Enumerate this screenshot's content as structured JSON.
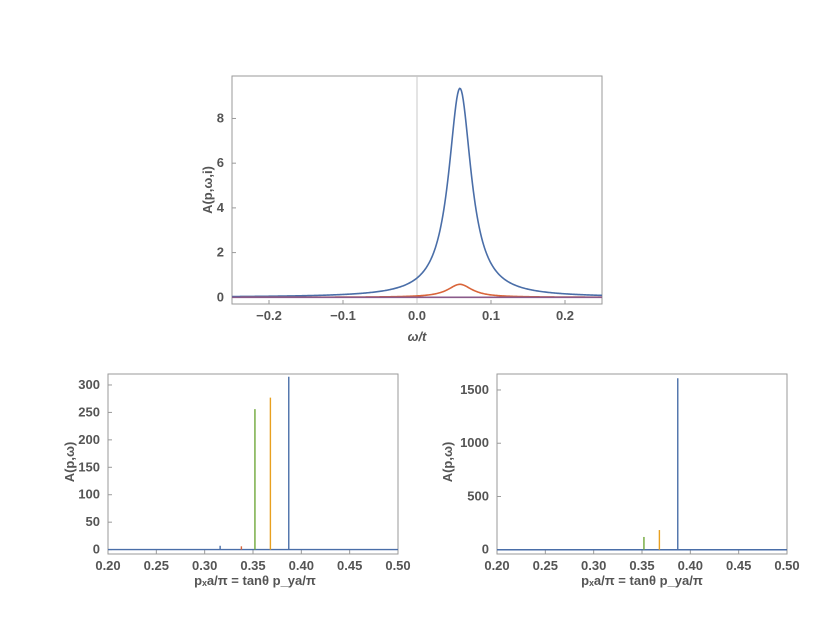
{
  "chart_data": [
    {
      "type": "line",
      "id": "top",
      "xlabel": "ω/t",
      "ylabel": "A(p,ω,i)",
      "xlim": [
        -0.25,
        0.25
      ],
      "ylim": [
        -0.3,
        9.9
      ],
      "xticks": [
        -0.2,
        -0.1,
        0.0,
        0.1,
        0.2
      ],
      "xtick_labels": [
        "−0.2",
        "−0.1",
        "0.0",
        "0.1",
        "0.2"
      ],
      "yticks": [
        0,
        2,
        4,
        6,
        8
      ],
      "ytick_labels": [
        "0",
        "2",
        "4",
        "6",
        "8"
      ],
      "grid": false,
      "vertical_reference_line_x": 0.0,
      "series": [
        {
          "color": "#4a6ea8",
          "shape": "lorentzian",
          "center": 0.058,
          "peak": 9.35,
          "halfwidth": 0.0185
        },
        {
          "color": "#d9653a",
          "shape": "lorentzian",
          "center": 0.058,
          "peak": 0.58,
          "halfwidth": 0.02
        },
        {
          "color": "#8a5a8a",
          "shape": "flat",
          "value": 0.0
        }
      ]
    },
    {
      "type": "line",
      "id": "bottom-left",
      "xlabel": "pₓa/π = tanθ p_ya/π",
      "ylabel": "A(p,ω)",
      "xlim": [
        0.2,
        0.5
      ],
      "ylim": [
        -8,
        320
      ],
      "xticks": [
        0.2,
        0.25,
        0.3,
        0.35,
        0.4,
        0.45,
        0.5
      ],
      "xtick_labels": [
        "0.20",
        "0.25",
        "0.30",
        "0.35",
        "0.40",
        "0.45",
        "0.50"
      ],
      "yticks": [
        0,
        50,
        100,
        150,
        200,
        250,
        300
      ],
      "ytick_labels": [
        "0",
        "50",
        "100",
        "150",
        "200",
        "250",
        "300"
      ],
      "grid": false,
      "baseline_color": "#4a6ea8",
      "spikes": [
        {
          "x": 0.316,
          "y": 7,
          "color": "#4a6ea8"
        },
        {
          "x": 0.338,
          "y": 6,
          "color": "#d9653a"
        },
        {
          "x": 0.352,
          "y": 256,
          "color": "#70a83a"
        },
        {
          "x": 0.368,
          "y": 277,
          "color": "#e8a020"
        },
        {
          "x": 0.387,
          "y": 315,
          "color": "#4a6ea8"
        }
      ]
    },
    {
      "type": "line",
      "id": "bottom-right",
      "xlabel": "pₓa/π = tanθ p_ya/π",
      "ylabel": "A(p,ω)",
      "xlim": [
        0.2,
        0.5
      ],
      "ylim": [
        -40,
        1650
      ],
      "xticks": [
        0.2,
        0.25,
        0.3,
        0.35,
        0.4,
        0.45,
        0.5
      ],
      "xtick_labels": [
        "0.20",
        "0.25",
        "0.30",
        "0.35",
        "0.40",
        "0.45",
        "0.50"
      ],
      "yticks": [
        0,
        500,
        1000,
        1500
      ],
      "ytick_labels": [
        "0",
        "500",
        "1000",
        "1500"
      ],
      "grid": false,
      "baseline_color": "#4a6ea8",
      "spikes": [
        {
          "x": 0.352,
          "y": 120,
          "color": "#70a83a"
        },
        {
          "x": 0.368,
          "y": 185,
          "color": "#e8a020"
        },
        {
          "x": 0.387,
          "y": 1610,
          "color": "#4a6ea8"
        }
      ]
    }
  ]
}
